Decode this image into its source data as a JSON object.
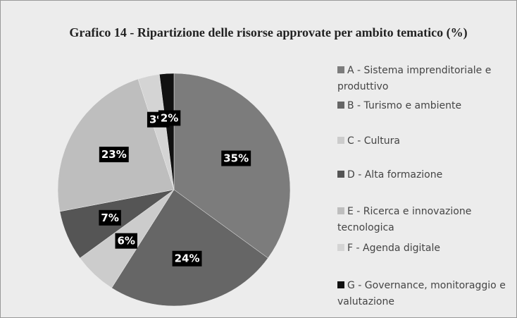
{
  "chart_data": {
    "type": "pie",
    "title": "Grafico 14 - Ripartizione delle risorse approvate per ambito tematico (%)",
    "categories": [
      "A - Sistema imprenditoriale e produttivo",
      "B - Turismo e ambiente",
      "C - Cultura",
      "D - Alta formazione",
      "E - Ricerca e innovazione tecnologica",
      "F - Agenda digitale",
      "G - Governance, monitoraggio e valutazione"
    ],
    "values": [
      35,
      24,
      6,
      7,
      23,
      3,
      2
    ],
    "value_labels": [
      "35%",
      "24%",
      "6%",
      "7%",
      "23%",
      "3%",
      "2%"
    ],
    "colors": [
      "#7c7c7c",
      "#666666",
      "#cccccc",
      "#555555",
      "#bebebe",
      "#d4d4d4",
      "#111111"
    ],
    "legend": "right"
  }
}
